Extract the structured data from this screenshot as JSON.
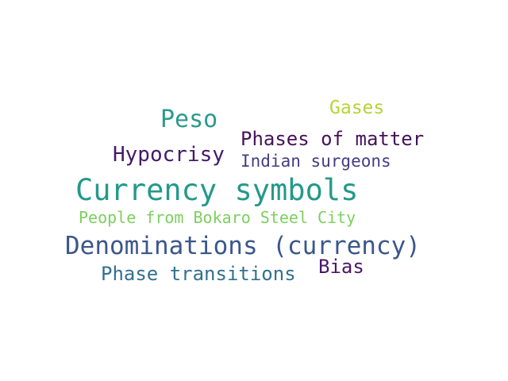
{
  "word_cloud": {
    "words": [
      {
        "id": "peso",
        "text": "Peso",
        "color": "#2a9a8c"
      },
      {
        "id": "gases",
        "text": "Gases",
        "color": "#b4d536"
      },
      {
        "id": "phases_of_matter",
        "text": "Phases of matter",
        "color": "#45125a"
      },
      {
        "id": "hypocrisy",
        "text": "Hypocrisy",
        "color": "#44196b"
      },
      {
        "id": "indian_surgeons",
        "text": "Indian surgeons",
        "color": "#433e84"
      },
      {
        "id": "currency_symbols",
        "text": "Currency symbols",
        "color": "#23998a"
      },
      {
        "id": "people_bokaro",
        "text": "People from Bokaro Steel City",
        "color": "#7cd05e"
      },
      {
        "id": "denominations",
        "text": "Denominations (currency)",
        "color": "#3b578b"
      },
      {
        "id": "phase_transitions",
        "text": "Phase transitions",
        "color": "#33708e"
      },
      {
        "id": "bias",
        "text": "Bias",
        "color": "#4a1868"
      }
    ]
  }
}
